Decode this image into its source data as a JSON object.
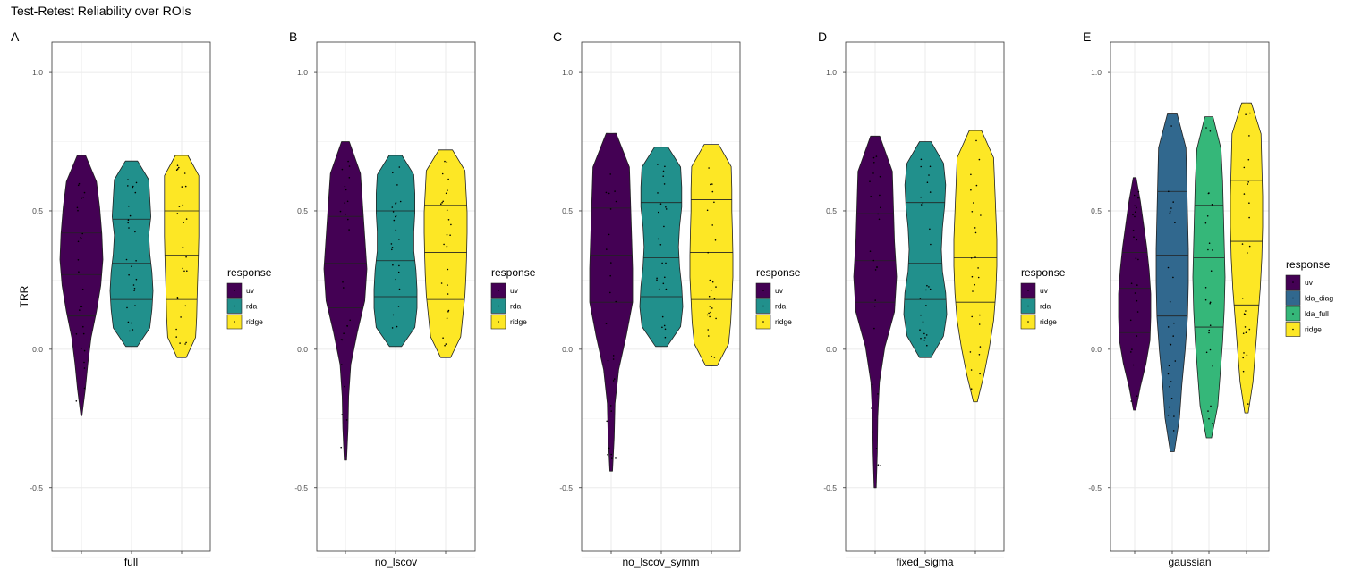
{
  "title": "Test-Retest Reliability over ROIs",
  "colors": {
    "uv": "#440154",
    "rda": "#21908C",
    "ridge": "#FDE725",
    "lda_diag": "#31688E",
    "lda_full": "#35B779"
  },
  "chart_data": [
    {
      "type": "violin",
      "panel": "A",
      "xlabel": "full",
      "ylabel": "TRR",
      "yticks": [
        "-0.5",
        "0.0",
        "0.5",
        "1.0"
      ],
      "ylim": [
        -0.73,
        1.11
      ],
      "legend": {
        "title": "response",
        "placement": "right",
        "entries": [
          "uv",
          "rda",
          "ridge"
        ]
      },
      "series": [
        {
          "name": "uv",
          "color": "#440154",
          "min": -0.24,
          "max": 0.7,
          "quantiles": [
            0.12,
            0.27,
            0.42
          ],
          "profile": [
            0.02,
            0.18,
            0.3,
            0.45,
            0.7,
            0.9,
            1.0,
            0.95,
            0.85,
            0.7,
            0.5
          ]
        },
        {
          "name": "rda",
          "color": "#21908C",
          "min": 0.01,
          "max": 0.68,
          "quantiles": [
            0.18,
            0.31,
            0.47
          ],
          "profile": [
            0.7,
            0.85,
            0.95,
            1.0,
            0.95,
            0.85,
            0.8,
            0.9,
            0.85,
            0.8,
            0.75
          ]
        },
        {
          "name": "ridge",
          "color": "#FDE725",
          "min": -0.03,
          "max": 0.7,
          "quantiles": [
            0.18,
            0.34,
            0.5
          ],
          "profile": [
            0.55,
            0.65,
            0.7,
            0.72,
            0.75,
            0.78,
            0.8,
            0.8,
            0.8,
            0.8,
            0.78
          ]
        }
      ]
    },
    {
      "type": "violin",
      "panel": "B",
      "xlabel": "no_lscov",
      "yticks": [
        "-0.5",
        "0.0",
        "0.5",
        "1.0"
      ],
      "ylim": [
        -0.73,
        1.11
      ],
      "legend": {
        "title": "response",
        "placement": "right",
        "entries": [
          "uv",
          "rda",
          "ridge"
        ]
      },
      "series": [
        {
          "name": "uv",
          "color": "#440154",
          "min": -0.4,
          "max": 0.75,
          "quantiles": [
            0.15,
            0.31,
            0.48
          ],
          "profile": [
            0.1,
            0.12,
            0.15,
            0.25,
            0.55,
            0.9,
            1.0,
            0.9,
            0.8,
            0.7,
            0.45
          ]
        },
        {
          "name": "rda",
          "color": "#21908C",
          "min": 0.01,
          "max": 0.7,
          "quantiles": [
            0.19,
            0.32,
            0.5
          ],
          "profile": [
            0.75,
            0.9,
            1.0,
            1.0,
            0.95,
            0.85,
            0.85,
            0.9,
            0.9,
            0.85,
            0.8
          ]
        },
        {
          "name": "ridge",
          "color": "#FDE725",
          "min": -0.03,
          "max": 0.72,
          "quantiles": [
            0.18,
            0.35,
            0.52
          ],
          "profile": [
            0.6,
            0.7,
            0.8,
            0.9,
            0.95,
            0.98,
            1.0,
            1.0,
            0.95,
            0.9,
            0.85
          ]
        }
      ]
    },
    {
      "type": "violin",
      "panel": "C",
      "xlabel": "no_lscov_symm",
      "yticks": [
        "-0.5",
        "0.0",
        "0.5",
        "1.0"
      ],
      "ylim": [
        -0.73,
        1.11
      ],
      "legend": {
        "title": "response",
        "placement": "right",
        "entries": [
          "uv",
          "rda",
          "ridge"
        ]
      },
      "series": [
        {
          "name": "uv",
          "color": "#440154",
          "min": -0.44,
          "max": 0.78,
          "quantiles": [
            0.17,
            0.34,
            0.51
          ],
          "profile": [
            0.12,
            0.14,
            0.18,
            0.35,
            0.7,
            1.0,
            1.0,
            0.95,
            0.9,
            0.85,
            0.6
          ]
        },
        {
          "name": "rda",
          "color": "#21908C",
          "min": 0.01,
          "max": 0.73,
          "quantiles": [
            0.19,
            0.33,
            0.53
          ],
          "profile": [
            0.7,
            0.9,
            1.0,
            0.95,
            0.85,
            0.8,
            0.85,
            0.95,
            0.95,
            0.9,
            0.85
          ]
        },
        {
          "name": "ridge",
          "color": "#FDE725",
          "min": -0.06,
          "max": 0.74,
          "quantiles": [
            0.18,
            0.35,
            0.54
          ],
          "profile": [
            0.7,
            0.8,
            0.9,
            0.95,
            1.0,
            1.0,
            0.98,
            0.95,
            0.95,
            0.92,
            0.9
          ]
        }
      ]
    },
    {
      "type": "violin",
      "panel": "D",
      "xlabel": "fixed_sigma",
      "yticks": [
        "-0.5",
        "0.0",
        "0.5",
        "1.0"
      ],
      "ylim": [
        -0.73,
        1.11
      ],
      "legend": {
        "title": "response",
        "placement": "right",
        "entries": [
          "uv",
          "rda",
          "ridge"
        ]
      },
      "series": [
        {
          "name": "uv",
          "color": "#440154",
          "min": -0.5,
          "max": 0.77,
          "quantiles": [
            0.17,
            0.32,
            0.49
          ],
          "profile": [
            0.08,
            0.1,
            0.12,
            0.2,
            0.45,
            0.9,
            1.0,
            0.9,
            0.85,
            0.8,
            0.55
          ]
        },
        {
          "name": "rda",
          "color": "#21908C",
          "min": -0.03,
          "max": 0.75,
          "quantiles": [
            0.18,
            0.31,
            0.53
          ],
          "profile": [
            0.7,
            0.85,
            1.0,
            0.95,
            0.8,
            0.75,
            0.8,
            0.9,
            0.95,
            0.85,
            0.7
          ]
        },
        {
          "name": "ridge",
          "color": "#FDE725",
          "min": -0.19,
          "max": 0.79,
          "quantiles": [
            0.17,
            0.33,
            0.55
          ],
          "profile": [
            0.2,
            0.4,
            0.65,
            0.85,
            0.95,
            1.0,
            1.0,
            0.95,
            0.9,
            0.85,
            0.75
          ]
        }
      ]
    },
    {
      "type": "violin",
      "panel": "E",
      "xlabel": "gaussian",
      "yticks": [
        "-0.5",
        "0.0",
        "0.5",
        "1.0"
      ],
      "ylim": [
        -0.73,
        1.11
      ],
      "legend": {
        "title": "response",
        "placement": "right",
        "entries": [
          "uv",
          "lda_diag",
          "lda_full",
          "ridge"
        ]
      },
      "series": [
        {
          "name": "uv",
          "color": "#440154",
          "min": -0.22,
          "max": 0.62,
          "quantiles": [
            0.06,
            0.22,
            0.35
          ],
          "profile": [
            0.15,
            0.35,
            0.7,
            0.95,
            1.0,
            1.0,
            0.9,
            0.75,
            0.55,
            0.35,
            0.2
          ]
        },
        {
          "name": "lda_diag",
          "color": "#31688E",
          "min": -0.37,
          "max": 0.85,
          "quantiles": [
            0.12,
            0.34,
            0.57
          ],
          "profile": [
            0.3,
            0.45,
            0.6,
            0.8,
            0.95,
            1.0,
            1.0,
            0.95,
            0.9,
            0.85,
            0.8
          ]
        },
        {
          "name": "lda_full",
          "color": "#35B779",
          "min": -0.32,
          "max": 0.84,
          "quantiles": [
            0.08,
            0.33,
            0.52
          ],
          "profile": [
            0.4,
            0.55,
            0.7,
            0.85,
            0.95,
            1.0,
            0.95,
            0.9,
            0.85,
            0.75,
            0.65
          ]
        },
        {
          "name": "ridge",
          "color": "#FDE725",
          "min": -0.23,
          "max": 0.89,
          "quantiles": [
            0.16,
            0.39,
            0.61
          ],
          "profile": [
            0.25,
            0.4,
            0.55,
            0.7,
            0.85,
            0.95,
            1.0,
            1.0,
            0.95,
            0.9,
            0.8
          ]
        }
      ]
    }
  ]
}
